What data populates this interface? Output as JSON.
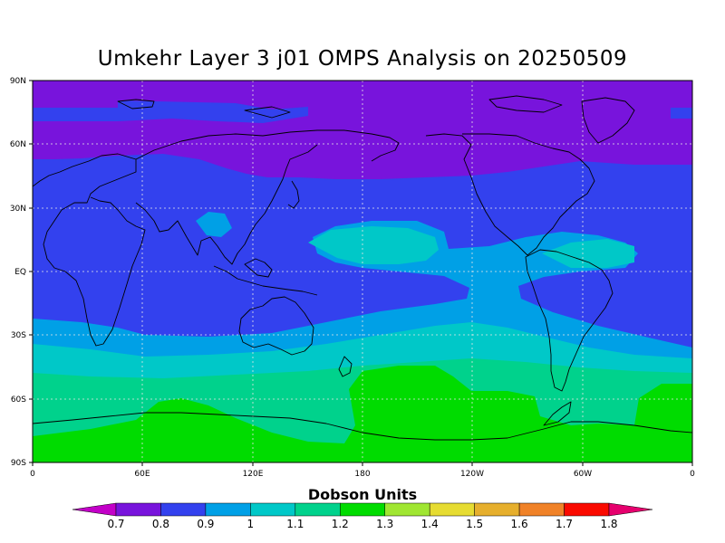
{
  "title": "Umkehr Layer 3 j01 OMPS Analysis on 20250509",
  "map": {
    "projection": "cylindrical equidistant",
    "x_axis": {
      "ticks": [
        "0",
        "60E",
        "120E",
        "180",
        "120W",
        "60W",
        "0"
      ]
    },
    "y_axis": {
      "ticks": [
        "90N",
        "60N",
        "30N",
        "EQ",
        "30S",
        "60S",
        "90S"
      ]
    },
    "grid": true
  },
  "colorbar": {
    "title": "Dobson Units",
    "levels": [
      "0.7",
      "0.8",
      "0.9",
      "1",
      "1.1",
      "1.2",
      "1.3",
      "1.4",
      "1.5",
      "1.6",
      "1.7",
      "1.8"
    ],
    "colors": [
      "#c300c8",
      "#7814dc",
      "#3341ee",
      "#00a0e6",
      "#00c8c8",
      "#00d28c",
      "#00dc00",
      "#a0e632",
      "#e6dc32",
      "#e6af2d",
      "#f08228",
      "#fa0a00",
      "#e6006e"
    ]
  },
  "chart_data": {
    "type": "heatmap",
    "title": "Umkehr Layer 3 j01 OMPS Analysis on 20250509",
    "units": "Dobson Units",
    "xlim_lon": [
      0,
      360
    ],
    "ylim_lat": [
      -90,
      90
    ],
    "bands": [
      {
        "lat_range": [
          "90N",
          "60N"
        ],
        "value_range": [
          0.7,
          0.8
        ]
      },
      {
        "lat_range": [
          "60N",
          "25S"
        ],
        "value_range": [
          0.8,
          1.0
        ]
      },
      {
        "lat_range": [
          "25S",
          "45S"
        ],
        "value_range": [
          1.0,
          1.2
        ]
      },
      {
        "lat_range": [
          "45S",
          "90S"
        ],
        "value_range": [
          1.2,
          1.3
        ]
      }
    ]
  }
}
